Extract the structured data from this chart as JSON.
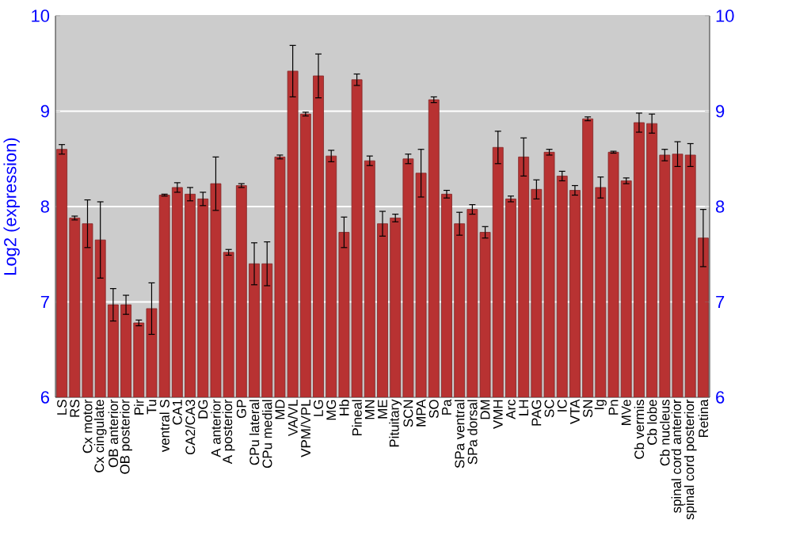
{
  "chart_data": {
    "type": "bar",
    "ylabel": "Log2 (expression)",
    "categories": [
      "LS",
      "RS",
      "Cx motor",
      "Cx cingulate",
      "OB anterior",
      "OB posterior",
      "Pir",
      "Tu",
      "ventral S",
      "CA1",
      "CA2/CA3",
      "DG",
      "A anterior",
      "A posterior",
      "GP",
      "CPu lateral",
      "CPu medial",
      "MD",
      "VA/VL",
      "VPM/VPL",
      "LG",
      "MG",
      "Hb",
      "Pineal",
      "MN",
      "ME",
      "Pituitary",
      "SCN",
      "MPA",
      "SO",
      "Pa",
      "SPa ventral",
      "SPa dorsal",
      "DM",
      "VMH",
      "Arc",
      "LH",
      "PAG",
      "SC",
      "IC",
      "VTA",
      "SN",
      "Ig",
      "Pn",
      "MVe",
      "Cb vermis",
      "Cb lobe",
      "Cb nucleus",
      "spinal cord anterior",
      "spinal cord posterior",
      "Retina"
    ],
    "values": [
      8.6,
      7.88,
      7.82,
      7.65,
      6.97,
      6.97,
      6.78,
      6.93,
      8.12,
      8.2,
      8.13,
      8.08,
      8.24,
      7.52,
      8.22,
      7.4,
      7.4,
      8.52,
      9.42,
      8.97,
      9.37,
      8.53,
      7.73,
      9.33,
      8.48,
      7.82,
      7.88,
      8.5,
      8.35,
      9.12,
      8.13,
      7.82,
      7.97,
      7.73,
      8.62,
      8.08,
      8.52,
      8.18,
      8.57,
      8.32,
      8.17,
      8.92,
      8.2,
      8.57,
      8.27,
      8.88,
      8.87,
      8.54,
      8.55,
      8.54,
      7.67
    ],
    "errors": [
      0.05,
      0.02,
      0.25,
      0.4,
      0.17,
      0.1,
      0.03,
      0.27,
      0.01,
      0.05,
      0.07,
      0.07,
      0.28,
      0.03,
      0.02,
      0.22,
      0.23,
      0.02,
      0.27,
      0.02,
      0.23,
      0.06,
      0.16,
      0.06,
      0.05,
      0.13,
      0.04,
      0.05,
      0.25,
      0.03,
      0.04,
      0.12,
      0.05,
      0.06,
      0.17,
      0.03,
      0.2,
      0.1,
      0.03,
      0.05,
      0.05,
      0.02,
      0.11,
      0.01,
      0.03,
      0.1,
      0.1,
      0.06,
      0.13,
      0.12,
      0.3
    ],
    "color": "#b83232",
    "ylim": [
      6,
      10
    ],
    "yticks": [
      6,
      7,
      8,
      9,
      10
    ],
    "y2lim": [
      6,
      10
    ],
    "y2ticks": [
      6,
      7,
      8,
      9,
      10
    ],
    "grid": "y"
  }
}
